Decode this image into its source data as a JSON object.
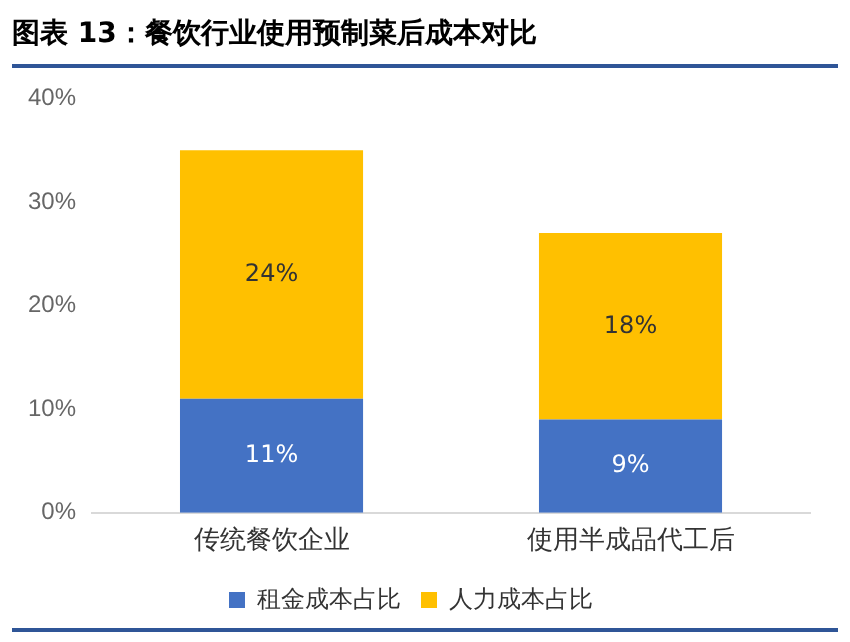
{
  "chart_data": {
    "type": "bar",
    "title": "图表 13：餐饮行业使用预制菜后成本对比",
    "categories": [
      "传统餐饮企业",
      "使用半成品代工后"
    ],
    "stacked": true,
    "series": [
      {
        "name": "租金成本占比",
        "color": "#4472c4",
        "values": [
          11,
          9
        ],
        "value_labels": [
          "11%",
          "9%"
        ]
      },
      {
        "name": "人力成本占比",
        "color": "#ffc000",
        "values": [
          24,
          18
        ],
        "value_labels": [
          "24%",
          "18%"
        ]
      }
    ],
    "ylim": [
      0,
      40
    ],
    "yticks": [
      {
        "value": 0,
        "label": "0%"
      },
      {
        "value": 10,
        "label": "10%"
      },
      {
        "value": 20,
        "label": "20%"
      },
      {
        "value": 30,
        "label": "30%"
      },
      {
        "value": 40,
        "label": "40%"
      }
    ],
    "grid": false,
    "legend": "bottom"
  }
}
